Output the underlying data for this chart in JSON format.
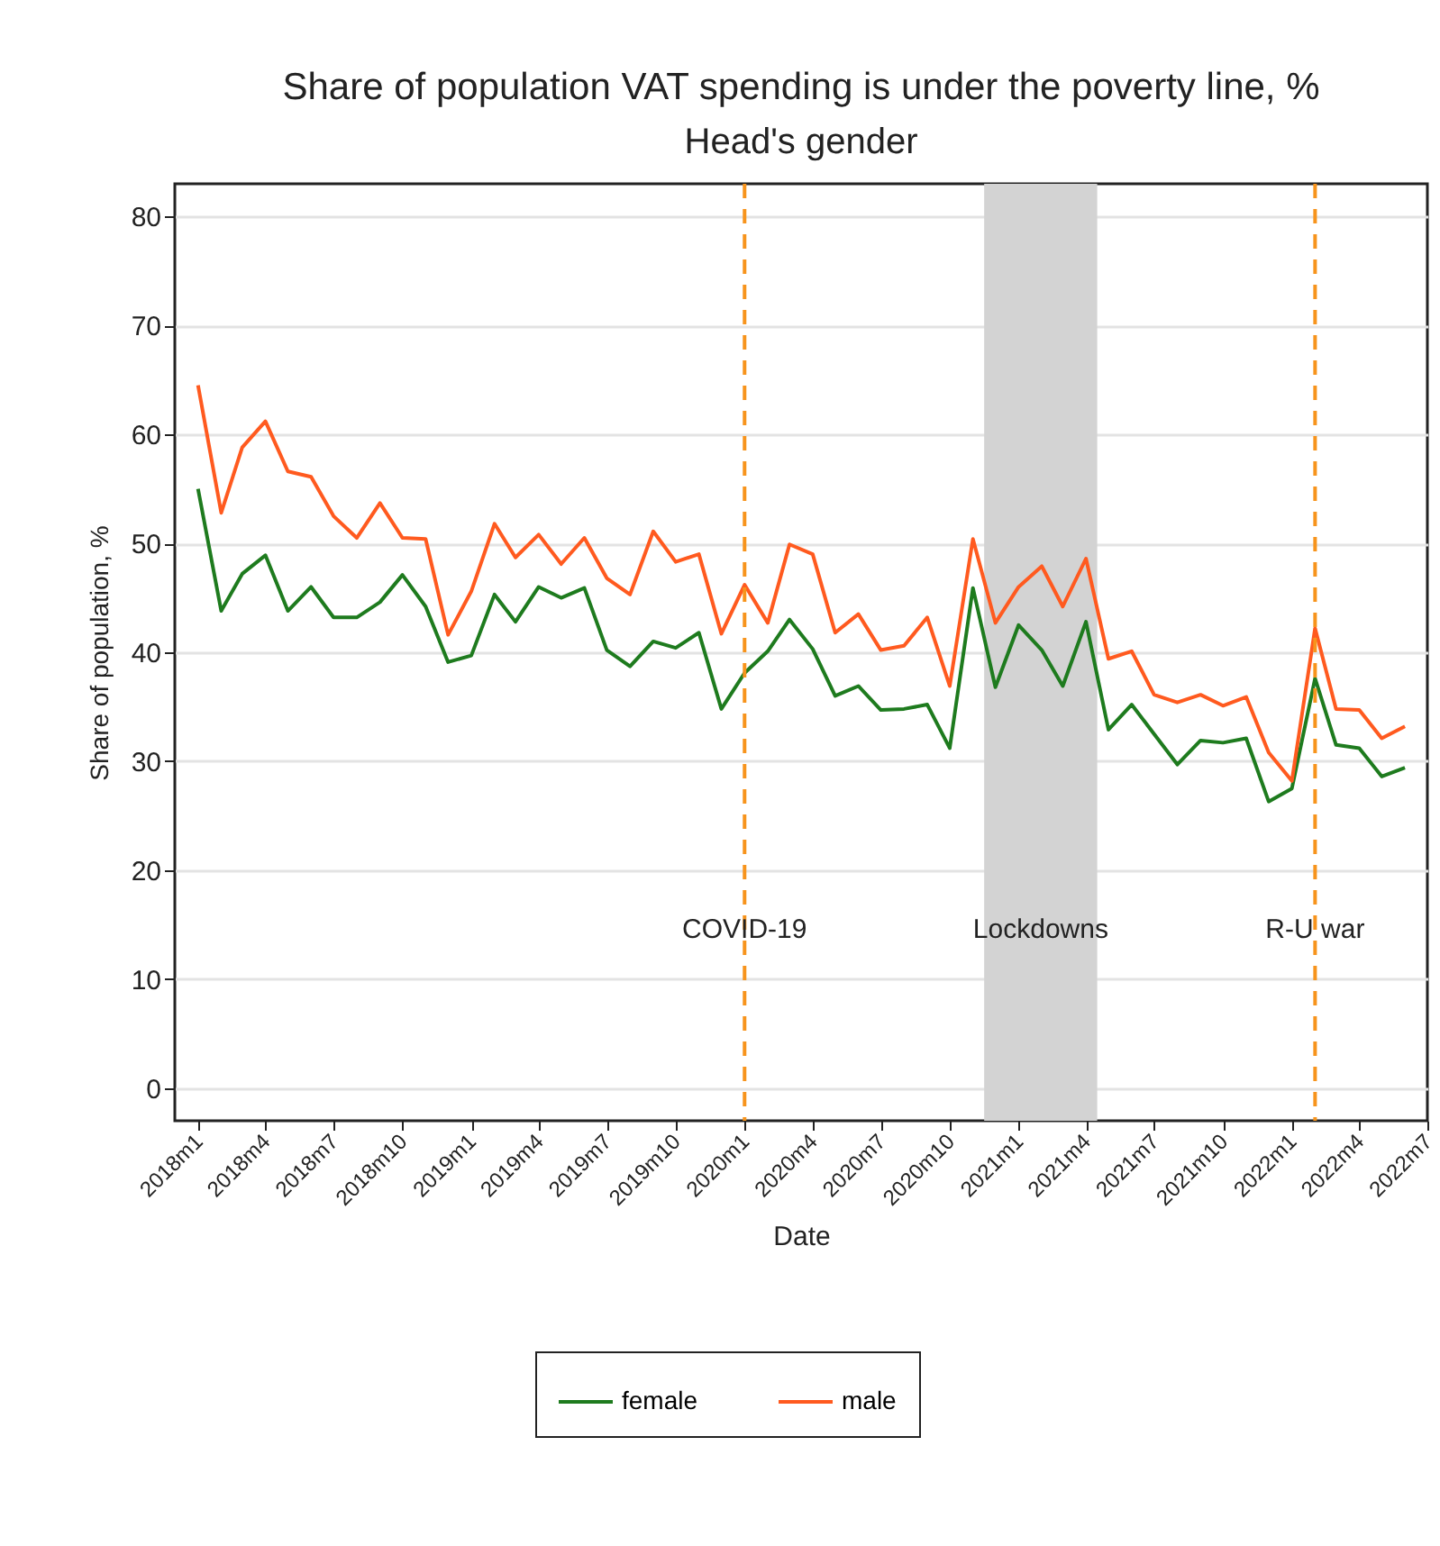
{
  "chart_data": {
    "type": "line",
    "title": "Share of population VAT spending is under the poverty line, %",
    "subtitle": "Head's gender",
    "xlabel": "Date",
    "ylabel": "Share of population, %",
    "x": [
      "2018-01",
      "2018-02",
      "2018-03",
      "2018-04",
      "2018-05",
      "2018-06",
      "2018-07",
      "2018-08",
      "2018-09",
      "2018-10",
      "2018-11",
      "2018-12",
      "2019-01",
      "2019-02",
      "2019-03",
      "2019-04",
      "2019-05",
      "2019-06",
      "2019-07",
      "2019-08",
      "2019-09",
      "2019-10",
      "2019-11",
      "2019-12",
      "2020-01",
      "2020-02",
      "2020-03",
      "2020-04",
      "2020-05",
      "2020-06",
      "2020-07",
      "2020-08",
      "2020-09",
      "2020-10",
      "2020-11",
      "2020-12",
      "2021-01",
      "2021-02",
      "2021-03",
      "2021-04",
      "2021-05",
      "2021-06",
      "2021-07",
      "2021-08",
      "2021-09",
      "2021-10",
      "2021-11",
      "2021-12",
      "2022-01",
      "2022-02",
      "2022-03",
      "2022-04",
      "2022-05",
      "2022-06"
    ],
    "series": [
      {
        "name": "female",
        "color": "#1e7b1e",
        "values": [
          55.0,
          43.8,
          47.2,
          48.9,
          43.8,
          46.0,
          43.2,
          43.2,
          44.6,
          47.1,
          44.2,
          39.1,
          39.7,
          45.3,
          42.8,
          46.0,
          45.0,
          45.9,
          40.2,
          38.7,
          41.0,
          40.4,
          41.8,
          34.8,
          38.1,
          40.1,
          43.0,
          40.3,
          36.0,
          36.9,
          34.7,
          34.8,
          35.2,
          31.2,
          45.9,
          36.8,
          42.5,
          40.2,
          36.9,
          42.8,
          32.9,
          35.2,
          32.5,
          29.7,
          31.9,
          31.7,
          32.1,
          26.3,
          27.5,
          37.6,
          31.5,
          31.2,
          28.6,
          29.4
        ]
      },
      {
        "name": "male",
        "color": "#ff5a1f",
        "values": [
          64.5,
          52.8,
          58.8,
          61.2,
          56.6,
          56.1,
          52.5,
          50.5,
          53.7,
          50.5,
          50.4,
          41.6,
          45.6,
          51.8,
          48.7,
          50.8,
          48.1,
          50.5,
          46.8,
          45.3,
          51.1,
          48.3,
          49.0,
          41.7,
          46.2,
          42.7,
          49.9,
          49.0,
          41.8,
          43.5,
          40.2,
          40.6,
          43.2,
          36.9,
          50.4,
          42.7,
          46.0,
          47.9,
          44.2,
          48.6,
          39.4,
          40.1,
          36.1,
          35.4,
          36.1,
          35.1,
          35.9,
          30.8,
          28.2,
          42.2,
          34.8,
          34.7,
          32.1,
          33.2
        ]
      }
    ],
    "xlim": [
      "2017-12",
      "2022-07"
    ],
    "xticks": [
      {
        "value": "2018-01",
        "label": "2018m1"
      },
      {
        "value": "2018-04",
        "label": "2018m4"
      },
      {
        "value": "2018-07",
        "label": "2018m7"
      },
      {
        "value": "2018-10",
        "label": "2018m10"
      },
      {
        "value": "2019-01",
        "label": "2019m1"
      },
      {
        "value": "2019-04",
        "label": "2019m4"
      },
      {
        "value": "2019-07",
        "label": "2019m7"
      },
      {
        "value": "2019-10",
        "label": "2019m10"
      },
      {
        "value": "2020-01",
        "label": "2020m1"
      },
      {
        "value": "2020-04",
        "label": "2020m4"
      },
      {
        "value": "2020-07",
        "label": "2020m7"
      },
      {
        "value": "2020-10",
        "label": "2020m10"
      },
      {
        "value": "2021-01",
        "label": "2021m1"
      },
      {
        "value": "2021-04",
        "label": "2021m4"
      },
      {
        "value": "2021-07",
        "label": "2021m7"
      },
      {
        "value": "2021-10",
        "label": "2021m10"
      },
      {
        "value": "2022-01",
        "label": "2022m1"
      },
      {
        "value": "2022-04",
        "label": "2022m4"
      },
      {
        "value": "2022-07",
        "label": "2022m7"
      }
    ],
    "ylim": [
      -3,
      83
    ],
    "yticks": [
      0,
      10,
      20,
      30,
      40,
      50,
      60,
      70,
      80
    ],
    "grid": "y",
    "legend": "bottom",
    "line_style": "solid",
    "ref_lines": [
      {
        "axis": "x",
        "value": "2020-01",
        "label": "COVID-19",
        "color": "#f7941d",
        "line_style": "dashed"
      },
      {
        "axis": "x",
        "value": "2022-02",
        "label": "R-U war",
        "color": "#f7941d",
        "line_style": "dashed"
      }
    ],
    "bands": [
      {
        "axis": "x",
        "from": "2020-11-16",
        "to": "2021-04-16",
        "label": "Lockdowns",
        "color": "#d3d3d3"
      }
    ]
  }
}
